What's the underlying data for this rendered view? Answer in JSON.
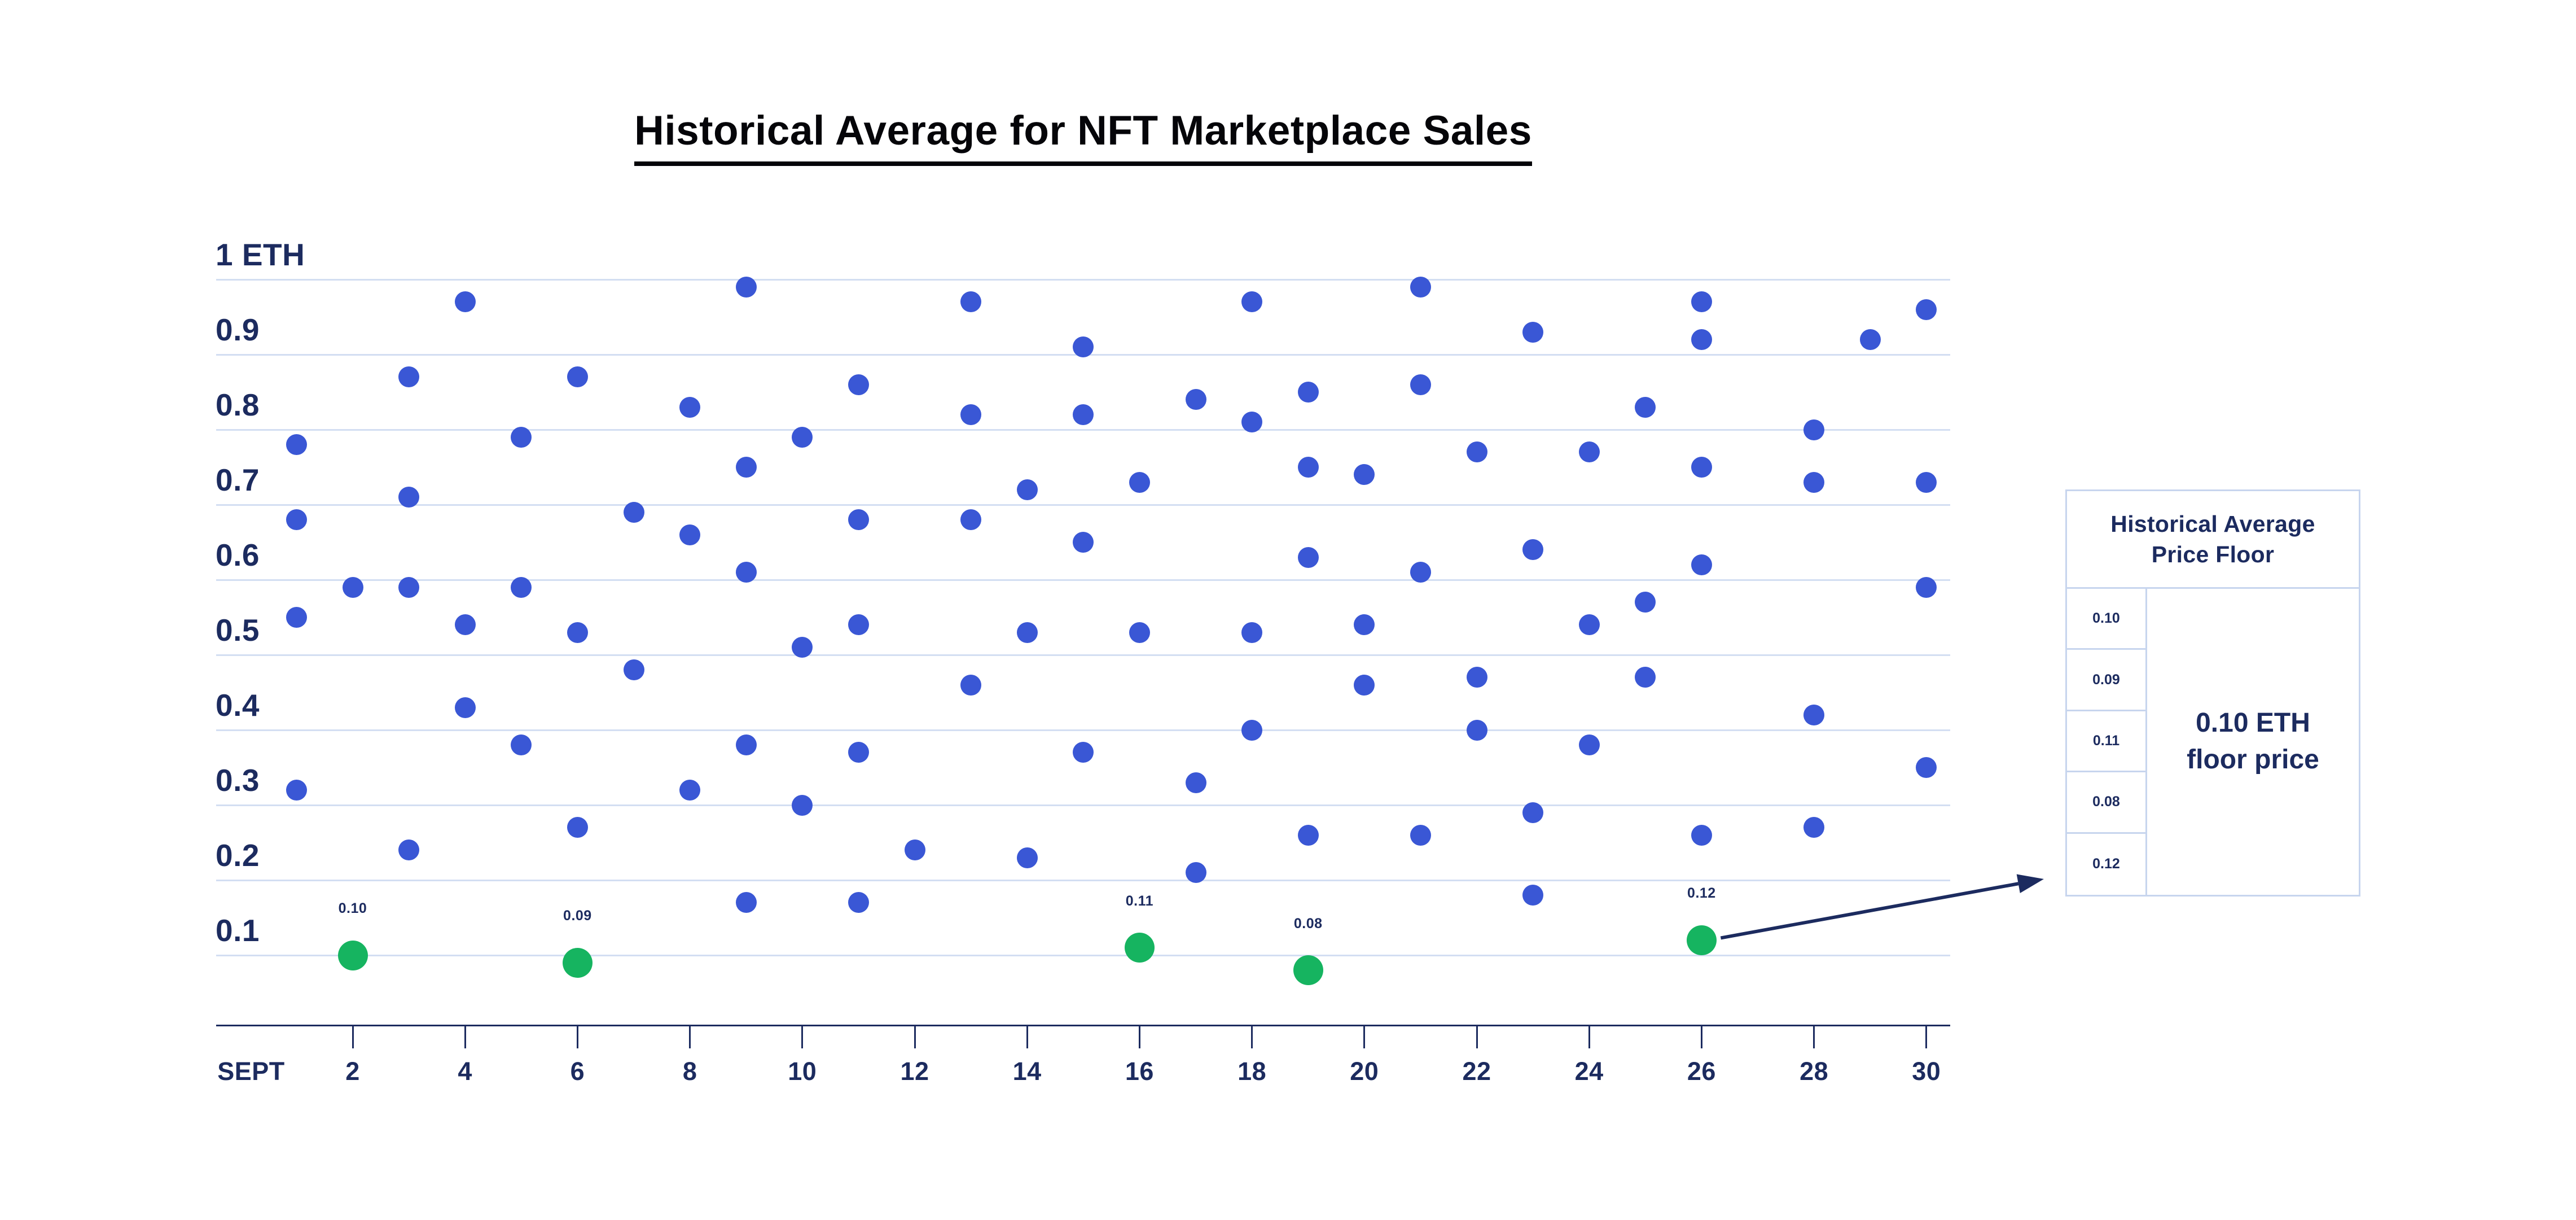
{
  "title": "Historical Average for NFT Marketplace Sales",
  "colors": {
    "blue_dot": "#3a57d5",
    "green_dot": "#16b460",
    "navy_text": "#1c2b5f",
    "gridline": "#d3def2",
    "table_border": "#c7d5ee",
    "title_text": "#050509"
  },
  "chart_data": {
    "type": "scatter",
    "title": "Historical Average for NFT Marketplace Sales",
    "xlabel": "SEPT",
    "ylabel": "ETH",
    "x_range": [
      1,
      30
    ],
    "y_range": [
      0,
      1.0
    ],
    "grid": "horizontal",
    "x_ticks": [
      2,
      4,
      6,
      8,
      10,
      12,
      14,
      16,
      18,
      20,
      22,
      24,
      26,
      28,
      30
    ],
    "y_ticks": [
      {
        "value": 1.0,
        "label": "1 ETH"
      },
      {
        "value": 0.9,
        "label": "0.9"
      },
      {
        "value": 0.8,
        "label": "0.8"
      },
      {
        "value": 0.7,
        "label": "0.7"
      },
      {
        "value": 0.6,
        "label": "0.6"
      },
      {
        "value": 0.5,
        "label": "0.5"
      },
      {
        "value": 0.4,
        "label": "0.4"
      },
      {
        "value": 0.3,
        "label": "0.3"
      },
      {
        "value": 0.2,
        "label": "0.2"
      },
      {
        "value": 0.1,
        "label": "0.1"
      }
    ],
    "series": [
      {
        "name": "daily-sales",
        "color": "#3a57d5",
        "points": [
          {
            "day": 1,
            "eth": 0.78
          },
          {
            "day": 1,
            "eth": 0.68
          },
          {
            "day": 1,
            "eth": 0.55
          },
          {
            "day": 1,
            "eth": 0.32
          },
          {
            "day": 2,
            "eth": 0.59
          },
          {
            "day": 3,
            "eth": 0.87
          },
          {
            "day": 3,
            "eth": 0.71
          },
          {
            "day": 3,
            "eth": 0.59
          },
          {
            "day": 3,
            "eth": 0.24
          },
          {
            "day": 4,
            "eth": 0.97
          },
          {
            "day": 4,
            "eth": 0.54
          },
          {
            "day": 4,
            "eth": 0.43
          },
          {
            "day": 5,
            "eth": 0.79
          },
          {
            "day": 5,
            "eth": 0.59
          },
          {
            "day": 5,
            "eth": 0.38
          },
          {
            "day": 6,
            "eth": 0.87
          },
          {
            "day": 6,
            "eth": 0.53
          },
          {
            "day": 6,
            "eth": 0.27
          },
          {
            "day": 7,
            "eth": 0.69
          },
          {
            "day": 7,
            "eth": 0.48
          },
          {
            "day": 8,
            "eth": 0.83
          },
          {
            "day": 8,
            "eth": 0.66
          },
          {
            "day": 8,
            "eth": 0.32
          },
          {
            "day": 9,
            "eth": 0.99
          },
          {
            "day": 9,
            "eth": 0.75
          },
          {
            "day": 9,
            "eth": 0.61
          },
          {
            "day": 9,
            "eth": 0.38
          },
          {
            "day": 9,
            "eth": 0.17
          },
          {
            "day": 10,
            "eth": 0.79
          },
          {
            "day": 10,
            "eth": 0.51
          },
          {
            "day": 10,
            "eth": 0.3
          },
          {
            "day": 11,
            "eth": 0.86
          },
          {
            "day": 11,
            "eth": 0.68
          },
          {
            "day": 11,
            "eth": 0.54
          },
          {
            "day": 11,
            "eth": 0.37
          },
          {
            "day": 11,
            "eth": 0.17
          },
          {
            "day": 12,
            "eth": 0.24
          },
          {
            "day": 13,
            "eth": 0.97
          },
          {
            "day": 13,
            "eth": 0.82
          },
          {
            "day": 13,
            "eth": 0.68
          },
          {
            "day": 13,
            "eth": 0.46
          },
          {
            "day": 14,
            "eth": 0.72
          },
          {
            "day": 14,
            "eth": 0.53
          },
          {
            "day": 14,
            "eth": 0.23
          },
          {
            "day": 15,
            "eth": 0.91
          },
          {
            "day": 15,
            "eth": 0.82
          },
          {
            "day": 15,
            "eth": 0.65
          },
          {
            "day": 15,
            "eth": 0.37
          },
          {
            "day": 16,
            "eth": 0.73
          },
          {
            "day": 16,
            "eth": 0.53
          },
          {
            "day": 17,
            "eth": 0.84
          },
          {
            "day": 17,
            "eth": 0.33
          },
          {
            "day": 17,
            "eth": 0.21
          },
          {
            "day": 18,
            "eth": 0.97
          },
          {
            "day": 18,
            "eth": 0.81
          },
          {
            "day": 18,
            "eth": 0.53
          },
          {
            "day": 18,
            "eth": 0.4
          },
          {
            "day": 19,
            "eth": 0.85
          },
          {
            "day": 19,
            "eth": 0.75
          },
          {
            "day": 19,
            "eth": 0.63
          },
          {
            "day": 19,
            "eth": 0.26
          },
          {
            "day": 20,
            "eth": 0.74
          },
          {
            "day": 20,
            "eth": 0.54
          },
          {
            "day": 20,
            "eth": 0.46
          },
          {
            "day": 21,
            "eth": 0.99
          },
          {
            "day": 21,
            "eth": 0.86
          },
          {
            "day": 21,
            "eth": 0.61
          },
          {
            "day": 21,
            "eth": 0.26
          },
          {
            "day": 22,
            "eth": 0.77
          },
          {
            "day": 22,
            "eth": 0.47
          },
          {
            "day": 22,
            "eth": 0.4
          },
          {
            "day": 23,
            "eth": 0.93
          },
          {
            "day": 23,
            "eth": 0.64
          },
          {
            "day": 23,
            "eth": 0.29
          },
          {
            "day": 23,
            "eth": 0.18
          },
          {
            "day": 24,
            "eth": 0.77
          },
          {
            "day": 24,
            "eth": 0.54
          },
          {
            "day": 24,
            "eth": 0.38
          },
          {
            "day": 25,
            "eth": 0.83
          },
          {
            "day": 25,
            "eth": 0.57
          },
          {
            "day": 25,
            "eth": 0.47
          },
          {
            "day": 26,
            "eth": 0.97
          },
          {
            "day": 26,
            "eth": 0.92
          },
          {
            "day": 26,
            "eth": 0.75
          },
          {
            "day": 26,
            "eth": 0.62
          },
          {
            "day": 26,
            "eth": 0.26
          },
          {
            "day": 28,
            "eth": 0.8
          },
          {
            "day": 28,
            "eth": 0.73
          },
          {
            "day": 28,
            "eth": 0.42
          },
          {
            "day": 28,
            "eth": 0.27
          },
          {
            "day": 29,
            "eth": 0.92
          },
          {
            "day": 30,
            "eth": 0.96
          },
          {
            "day": 30,
            "eth": 0.73
          },
          {
            "day": 30,
            "eth": 0.59
          },
          {
            "day": 30,
            "eth": 0.35
          }
        ]
      },
      {
        "name": "floor-price-sales",
        "color": "#16b460",
        "points": [
          {
            "day": 2,
            "eth": 0.1,
            "label": "0.10"
          },
          {
            "day": 6,
            "eth": 0.09,
            "label": "0.09"
          },
          {
            "day": 16,
            "eth": 0.11,
            "label": "0.11"
          },
          {
            "day": 19,
            "eth": 0.08,
            "label": "0.08"
          },
          {
            "day": 26,
            "eth": 0.12,
            "label": "0.12"
          }
        ]
      }
    ],
    "annotation_arrow": {
      "from_day": 26,
      "from_eth": 0.12,
      "points_to": "price-floor-table"
    }
  },
  "price_floor_table": {
    "header_line1": "Historical Average",
    "header_line2": "Price Floor",
    "rows": [
      "0.10",
      "0.09",
      "0.11",
      "0.08",
      "0.12"
    ],
    "summary_line1": "0.10 ETH",
    "summary_line2": "floor price"
  }
}
